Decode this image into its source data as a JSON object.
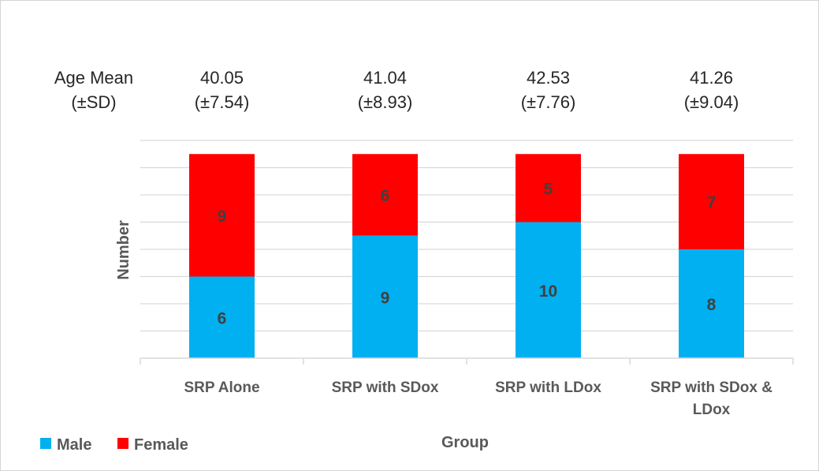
{
  "chart_data": {
    "type": "bar",
    "stacked": true,
    "categories": [
      "SRP Alone",
      "SRP with SDox",
      "SRP with LDox",
      "SRP with SDox & LDox"
    ],
    "series": [
      {
        "name": "Male",
        "color": "#00b0f0",
        "values": [
          6,
          9,
          10,
          8
        ]
      },
      {
        "name": "Female",
        "color": "#ff0000",
        "values": [
          9,
          6,
          5,
          7
        ]
      }
    ],
    "xlabel": "Group",
    "ylabel": "Number",
    "ylim": [
      0,
      16
    ],
    "grid": true,
    "legend": "bottom-left",
    "age_header": [
      "Age Mean",
      "(±SD)"
    ],
    "age_stats": [
      {
        "mean": "40.05",
        "sd": "(±7.54)"
      },
      {
        "mean": "41.04",
        "sd": "(±8.93)"
      },
      {
        "mean": "42.53",
        "sd": "(±7.76)"
      },
      {
        "mean": "41.26",
        "sd": "(±9.04)"
      }
    ]
  }
}
